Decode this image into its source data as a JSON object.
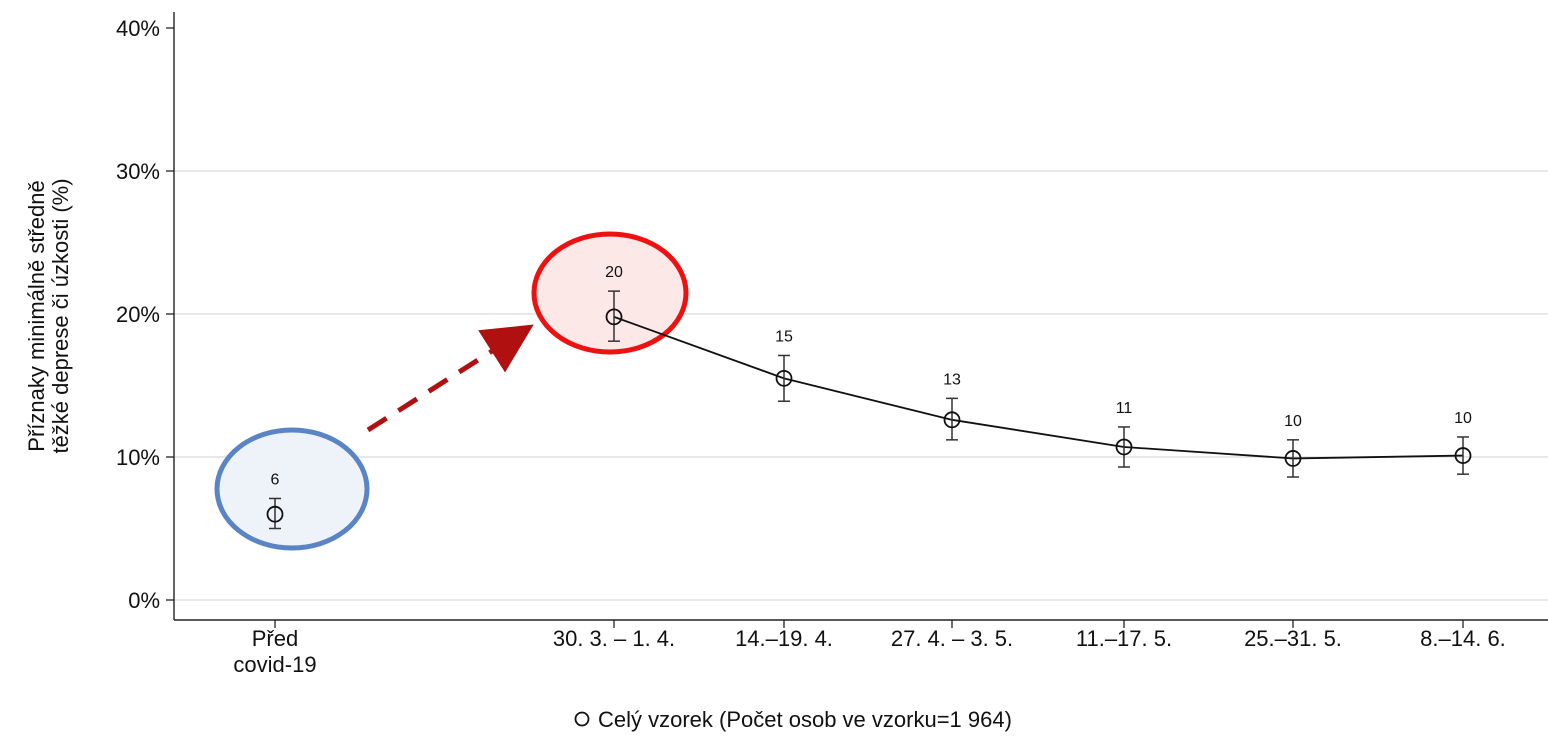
{
  "chart_data": {
    "type": "line",
    "ylabel_lines": [
      "Příznaky minimálně středně",
      "těžké deprese či úzkosti (%)"
    ],
    "xlabel": "",
    "ylim": [
      0,
      40
    ],
    "yticks": [
      "0%",
      "10%",
      "20%",
      "30%",
      "40%"
    ],
    "grid": true,
    "categories": [
      [
        "Před",
        "covid-19"
      ],
      [
        "30. 3. – 1. 4."
      ],
      [
        "14.–19. 4."
      ],
      [
        "27. 4. – 3. 5."
      ],
      [
        "11.–17. 5."
      ],
      [
        "25.–31. 5."
      ],
      [
        "8.–14. 6."
      ]
    ],
    "series": [
      {
        "name": "Celý vzorek (Počet osob ve vzorku=1 964)",
        "values": [
          6,
          19.8,
          15.5,
          12.6,
          10.7,
          9.9,
          10.1
        ],
        "labels": [
          "6",
          "20",
          "15",
          "13",
          "11",
          "10",
          "10"
        ],
        "ci_low": [
          5,
          18.1,
          13.9,
          11.2,
          9.3,
          8.6,
          8.8
        ],
        "ci_high": [
          7.1,
          21.6,
          17.1,
          14.1,
          12.1,
          11.2,
          11.4
        ],
        "connected_from_index": 1
      }
    ],
    "legend": {
      "position": "bottom",
      "text": "Celý vzorek (Počet osob ve vzorku=1 964)"
    },
    "annotations": {
      "pre_circle_color": "#5b84c4",
      "pre_circle_fill": "#eef2f9",
      "peak_circle_color": "#ee1111",
      "peak_circle_fill": "#fde8e8",
      "arrow_color": "#b01010"
    }
  }
}
